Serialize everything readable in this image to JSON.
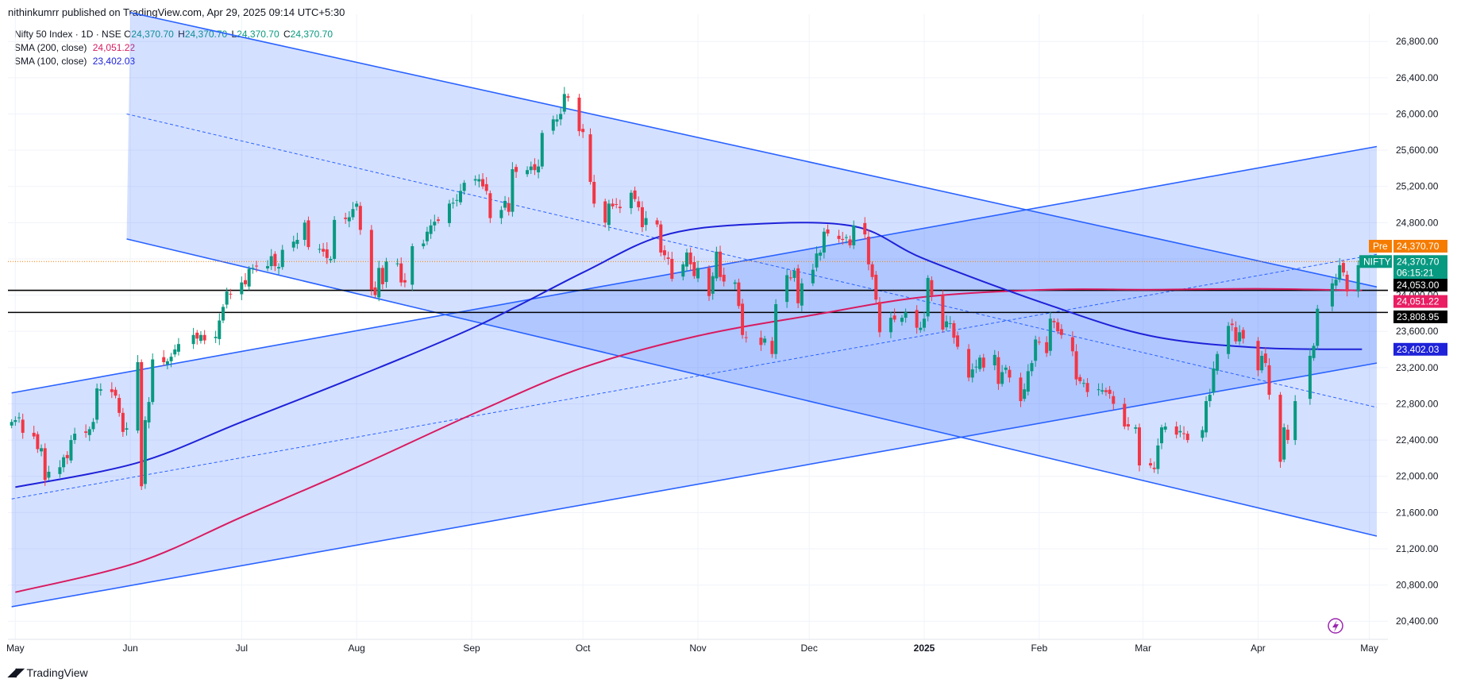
{
  "header": {
    "publisher": "nithinkumrr published on TradingView.com, Apr 29, 2025 09:14 UTC+5:30"
  },
  "legend": {
    "symbol": "Nifty 50 Index · 1D · NSE",
    "o_key": "O",
    "o": "24,370.70",
    "h_key": "H",
    "h": "24,370.70",
    "l_key": "L",
    "l": "24,370.70",
    "c_key": "C",
    "c": "24,370.70",
    "sma200_label": "SMA (200, close)",
    "sma200_value": "24,051.22",
    "sma100_label": "SMA (100, close)",
    "sma100_value": "23,402.03"
  },
  "footer": {
    "logo_text": "TradingView"
  },
  "colors": {
    "up": "#089981",
    "down": "#f23645",
    "channel_line": "#2962ff",
    "channel_fill": "#2962ff",
    "sma200": "#d81b60",
    "sma100": "#1e22d8",
    "pre_tag": "#f57c00",
    "nifty_tag": "#089981",
    "hline": "#000000"
  },
  "price_tags": {
    "pre_label": "Pre",
    "pre_value": "24,370.70",
    "nifty_label": "NIFTY",
    "nifty_value": "24,370.70",
    "countdown": "06:15:21",
    "hline1": "24,053.00",
    "hline2": "23,808.95",
    "sma200": "24,051.22",
    "sma100": "23,402.03"
  },
  "chart_data": {
    "type": "candlestick",
    "interval": "1D",
    "ylim": [
      20200,
      27100
    ],
    "y_ticks": [
      20400,
      20800,
      21200,
      21600,
      22000,
      22400,
      22800,
      23200,
      23600,
      24000,
      24400,
      24800,
      25200,
      25600,
      26000,
      26400,
      26800
    ],
    "y_tick_labels": [
      "20,400.00",
      "20,800.00",
      "21,200.00",
      "21,600.00",
      "22,000.00",
      "22,400.00",
      "22,800.00",
      "23,200.00",
      "23,600.00",
      "24,000.00",
      "24,400.00",
      "24,800.00",
      "25,200.00",
      "25,600.00",
      "26,000.00",
      "26,400.00",
      "26,800.00"
    ],
    "x_labels": [
      "May",
      "Jun",
      "Jul",
      "Aug",
      "Sep",
      "Oct",
      "Nov",
      "Dec",
      "2025",
      "Feb",
      "Mar",
      "Apr",
      "May"
    ],
    "x_label_dates": [
      "2024-05-01",
      "2024-06-01",
      "2024-07-01",
      "2024-08-01",
      "2024-09-01",
      "2024-10-01",
      "2024-11-01",
      "2024-12-01",
      "2025-01-01",
      "2025-02-01",
      "2025-03-01",
      "2025-04-01",
      "2025-05-01"
    ],
    "closes": [
      [
        "2024-04-30",
        22600
      ],
      [
        "2024-05-01",
        22620
      ],
      [
        "2024-05-02",
        22650
      ],
      [
        "2024-05-03",
        22480
      ],
      [
        "2024-05-06",
        22440
      ],
      [
        "2024-05-07",
        22300
      ],
      [
        "2024-05-08",
        22310
      ],
      [
        "2024-05-09",
        21960
      ],
      [
        "2024-05-10",
        22050
      ],
      [
        "2024-05-13",
        22100
      ],
      [
        "2024-05-14",
        22210
      ],
      [
        "2024-05-15",
        22200
      ],
      [
        "2024-05-16",
        22400
      ],
      [
        "2024-05-17",
        22470
      ],
      [
        "2024-05-20",
        22480
      ],
      [
        "2024-05-21",
        22520
      ],
      [
        "2024-05-22",
        22600
      ],
      [
        "2024-05-23",
        22970
      ],
      [
        "2024-05-24",
        22960
      ],
      [
        "2024-05-27",
        22930
      ],
      [
        "2024-05-28",
        22890
      ],
      [
        "2024-05-29",
        22700
      ],
      [
        "2024-05-30",
        22490
      ],
      [
        "2024-05-31",
        22530
      ],
      [
        "2024-06-03",
        23260
      ],
      [
        "2024-06-04",
        21890
      ],
      [
        "2024-06-05",
        22620
      ],
      [
        "2024-06-06",
        22820
      ],
      [
        "2024-06-07",
        23290
      ],
      [
        "2024-06-10",
        23260
      ],
      [
        "2024-06-11",
        23270
      ],
      [
        "2024-06-12",
        23320
      ],
      [
        "2024-06-13",
        23400
      ],
      [
        "2024-06-14",
        23460
      ],
      [
        "2024-06-18",
        23560
      ],
      [
        "2024-06-19",
        23520
      ],
      [
        "2024-06-20",
        23560
      ],
      [
        "2024-06-21",
        23500
      ],
      [
        "2024-06-24",
        23540
      ],
      [
        "2024-06-25",
        23720
      ],
      [
        "2024-06-26",
        23870
      ],
      [
        "2024-06-27",
        24040
      ],
      [
        "2024-06-28",
        24010
      ],
      [
        "2024-07-01",
        24140
      ],
      [
        "2024-07-02",
        24120
      ],
      [
        "2024-07-03",
        24290
      ],
      [
        "2024-07-04",
        24300
      ],
      [
        "2024-07-05",
        24320
      ],
      [
        "2024-07-08",
        24320
      ],
      [
        "2024-07-09",
        24430
      ],
      [
        "2024-07-10",
        24320
      ],
      [
        "2024-07-11",
        24310
      ],
      [
        "2024-07-12",
        24500
      ],
      [
        "2024-07-15",
        24590
      ],
      [
        "2024-07-16",
        24610
      ],
      [
        "2024-07-18",
        24800
      ],
      [
        "2024-07-19",
        24530
      ],
      [
        "2024-07-22",
        24510
      ],
      [
        "2024-07-23",
        24480
      ],
      [
        "2024-07-24",
        24410
      ],
      [
        "2024-07-25",
        24400
      ],
      [
        "2024-07-26",
        24830
      ],
      [
        "2024-07-29",
        24840
      ],
      [
        "2024-07-30",
        24860
      ],
      [
        "2024-07-31",
        24950
      ],
      [
        "2024-08-01",
        25010
      ],
      [
        "2024-08-02",
        24720
      ],
      [
        "2024-08-05",
        24060
      ],
      [
        "2024-08-06",
        24000
      ],
      [
        "2024-08-07",
        24300
      ],
      [
        "2024-08-08",
        24120
      ],
      [
        "2024-08-09",
        24370
      ],
      [
        "2024-08-12",
        24350
      ],
      [
        "2024-08-13",
        24140
      ],
      [
        "2024-08-14",
        24140
      ],
      [
        "2024-08-16",
        24540
      ],
      [
        "2024-08-19",
        24570
      ],
      [
        "2024-08-20",
        24700
      ],
      [
        "2024-08-21",
        24770
      ],
      [
        "2024-08-22",
        24810
      ],
      [
        "2024-08-23",
        24820
      ],
      [
        "2024-08-26",
        25010
      ],
      [
        "2024-08-27",
        25020
      ],
      [
        "2024-08-28",
        25050
      ],
      [
        "2024-08-29",
        25150
      ],
      [
        "2024-08-30",
        25240
      ],
      [
        "2024-09-02",
        25280
      ],
      [
        "2024-09-03",
        25280
      ],
      [
        "2024-09-04",
        25200
      ],
      [
        "2024-09-05",
        25150
      ],
      [
        "2024-09-06",
        24850
      ],
      [
        "2024-09-09",
        24940
      ],
      [
        "2024-09-10",
        25040
      ],
      [
        "2024-09-11",
        24920
      ],
      [
        "2024-09-12",
        25390
      ],
      [
        "2024-09-13",
        25360
      ],
      [
        "2024-09-16",
        25380
      ],
      [
        "2024-09-17",
        25420
      ],
      [
        "2024-09-18",
        25380
      ],
      [
        "2024-09-19",
        25420
      ],
      [
        "2024-09-20",
        25790
      ],
      [
        "2024-09-23",
        25940
      ],
      [
        "2024-09-24",
        25940
      ],
      [
        "2024-09-25",
        26000
      ],
      [
        "2024-09-26",
        26220
      ],
      [
        "2024-09-27",
        26180
      ],
      [
        "2024-09-30",
        25810
      ],
      [
        "2024-10-01",
        25800
      ],
      [
        "2024-10-03",
        25250
      ],
      [
        "2024-10-04",
        25010
      ],
      [
        "2024-10-07",
        24800
      ],
      [
        "2024-10-08",
        25010
      ],
      [
        "2024-10-09",
        24980
      ],
      [
        "2024-10-10",
        25000
      ],
      [
        "2024-10-11",
        24960
      ],
      [
        "2024-10-14",
        25130
      ],
      [
        "2024-10-15",
        25060
      ],
      [
        "2024-10-16",
        24970
      ],
      [
        "2024-10-17",
        24750
      ],
      [
        "2024-10-18",
        24850
      ],
      [
        "2024-10-21",
        24780
      ],
      [
        "2024-10-22",
        24470
      ],
      [
        "2024-10-23",
        24440
      ],
      [
        "2024-10-24",
        24400
      ],
      [
        "2024-10-25",
        24180
      ],
      [
        "2024-10-28",
        24340
      ],
      [
        "2024-10-29",
        24470
      ],
      [
        "2024-10-30",
        24340
      ],
      [
        "2024-10-31",
        24210
      ],
      [
        "2024-11-01",
        24300
      ],
      [
        "2024-11-04",
        23990
      ],
      [
        "2024-11-05",
        24210
      ],
      [
        "2024-11-06",
        24480
      ],
      [
        "2024-11-07",
        24200
      ],
      [
        "2024-11-08",
        24150
      ],
      [
        "2024-11-11",
        24140
      ],
      [
        "2024-11-12",
        23880
      ],
      [
        "2024-11-13",
        23560
      ],
      [
        "2024-11-14",
        23530
      ],
      [
        "2024-11-18",
        23450
      ],
      [
        "2024-11-19",
        23520
      ],
      [
        "2024-11-21",
        23350
      ],
      [
        "2024-11-22",
        23900
      ],
      [
        "2024-11-25",
        24220
      ],
      [
        "2024-11-26",
        24190
      ],
      [
        "2024-11-27",
        24270
      ],
      [
        "2024-11-28",
        23910
      ],
      [
        "2024-11-29",
        24130
      ],
      [
        "2024-12-02",
        24280
      ],
      [
        "2024-12-03",
        24460
      ],
      [
        "2024-12-04",
        24470
      ],
      [
        "2024-12-05",
        24700
      ],
      [
        "2024-12-06",
        24680
      ],
      [
        "2024-12-09",
        24620
      ],
      [
        "2024-12-10",
        24610
      ],
      [
        "2024-12-11",
        24640
      ],
      [
        "2024-12-12",
        24550
      ],
      [
        "2024-12-13",
        24770
      ],
      [
        "2024-12-16",
        24670
      ],
      [
        "2024-12-17",
        24340
      ],
      [
        "2024-12-18",
        24200
      ],
      [
        "2024-12-19",
        23950
      ],
      [
        "2024-12-20",
        23590
      ],
      [
        "2024-12-23",
        23750
      ],
      [
        "2024-12-24",
        23730
      ],
      [
        "2024-12-26",
        23750
      ],
      [
        "2024-12-27",
        23810
      ],
      [
        "2024-12-30",
        23640
      ],
      [
        "2024-12-31",
        23640
      ],
      [
        "2025-01-01",
        23740
      ],
      [
        "2025-01-02",
        24190
      ],
      [
        "2025-01-03",
        24000
      ],
      [
        "2025-01-06",
        23620
      ],
      [
        "2025-01-07",
        23710
      ],
      [
        "2025-01-08",
        23690
      ],
      [
        "2025-01-09",
        23530
      ],
      [
        "2025-01-10",
        23430
      ],
      [
        "2025-01-13",
        23090
      ],
      [
        "2025-01-14",
        23180
      ],
      [
        "2025-01-15",
        23210
      ],
      [
        "2025-01-16",
        23310
      ],
      [
        "2025-01-17",
        23200
      ],
      [
        "2025-01-20",
        23340
      ],
      [
        "2025-01-21",
        23020
      ],
      [
        "2025-01-22",
        23150
      ],
      [
        "2025-01-23",
        23200
      ],
      [
        "2025-01-24",
        23090
      ],
      [
        "2025-01-27",
        22830
      ],
      [
        "2025-01-28",
        22960
      ],
      [
        "2025-01-29",
        23160
      ],
      [
        "2025-01-30",
        23250
      ],
      [
        "2025-01-31",
        23510
      ],
      [
        "2025-02-01",
        23480
      ],
      [
        "2025-02-03",
        23360
      ],
      [
        "2025-02-04",
        23740
      ],
      [
        "2025-02-05",
        23700
      ],
      [
        "2025-02-06",
        23600
      ],
      [
        "2025-02-07",
        23560
      ],
      [
        "2025-02-10",
        23380
      ],
      [
        "2025-02-11",
        23070
      ],
      [
        "2025-02-12",
        23050
      ],
      [
        "2025-02-13",
        23030
      ],
      [
        "2025-02-14",
        22930
      ],
      [
        "2025-02-17",
        22960
      ],
      [
        "2025-02-18",
        22950
      ],
      [
        "2025-02-19",
        22930
      ],
      [
        "2025-02-20",
        22910
      ],
      [
        "2025-02-21",
        22800
      ],
      [
        "2025-02-24",
        22550
      ],
      [
        "2025-02-25",
        22550
      ],
      [
        "2025-02-27",
        22540
      ],
      [
        "2025-02-28",
        22120
      ],
      [
        "2025-03-03",
        22120
      ],
      [
        "2025-03-04",
        22080
      ],
      [
        "2025-03-05",
        22340
      ],
      [
        "2025-03-06",
        22540
      ],
      [
        "2025-03-07",
        22550
      ],
      [
        "2025-03-10",
        22460
      ],
      [
        "2025-03-11",
        22500
      ],
      [
        "2025-03-12",
        22470
      ],
      [
        "2025-03-13",
        22400
      ],
      [
        "2025-03-17",
        22510
      ],
      [
        "2025-03-18",
        22830
      ],
      [
        "2025-03-19",
        22900
      ],
      [
        "2025-03-20",
        23190
      ],
      [
        "2025-03-21",
        23350
      ],
      [
        "2025-03-24",
        23660
      ],
      [
        "2025-03-25",
        23670
      ],
      [
        "2025-03-26",
        23490
      ],
      [
        "2025-03-27",
        23590
      ],
      [
        "2025-03-28",
        23520
      ],
      [
        "2025-04-01",
        23170
      ],
      [
        "2025-04-02",
        23330
      ],
      [
        "2025-04-03",
        23250
      ],
      [
        "2025-04-04",
        22900
      ],
      [
        "2025-04-07",
        22160
      ],
      [
        "2025-04-08",
        22540
      ],
      [
        "2025-04-09",
        22400
      ],
      [
        "2025-04-11",
        22830
      ],
      [
        "2025-04-15",
        23330
      ],
      [
        "2025-04-16",
        23440
      ],
      [
        "2025-04-17",
        23850
      ],
      [
        "2025-04-21",
        24130
      ],
      [
        "2025-04-22",
        24170
      ],
      [
        "2025-04-23",
        24330
      ],
      [
        "2025-04-24",
        24250
      ],
      [
        "2025-04-25",
        24040
      ],
      [
        "2025-04-28",
        24330
      ],
      [
        "2025-04-29",
        24370
      ]
    ],
    "sma100": [
      [
        "2024-05-01",
        21880
      ],
      [
        "2024-06-03",
        22150
      ],
      [
        "2024-07-01",
        22600
      ],
      [
        "2024-08-01",
        23100
      ],
      [
        "2024-09-02",
        23650
      ],
      [
        "2024-10-01",
        24250
      ],
      [
        "2024-10-22",
        24650
      ],
      [
        "2024-11-14",
        24780
      ],
      [
        "2024-12-13",
        24760
      ],
      [
        "2025-01-01",
        24400
      ],
      [
        "2025-02-03",
        23900
      ],
      [
        "2025-03-03",
        23550
      ],
      [
        "2025-04-01",
        23420
      ],
      [
        "2025-04-29",
        23402
      ]
    ],
    "sma200": [
      [
        "2024-05-01",
        20720
      ],
      [
        "2024-06-03",
        21050
      ],
      [
        "2024-07-01",
        21550
      ],
      [
        "2024-08-01",
        22100
      ],
      [
        "2024-09-02",
        22700
      ],
      [
        "2024-10-01",
        23200
      ],
      [
        "2024-11-01",
        23550
      ],
      [
        "2024-12-02",
        23780
      ],
      [
        "2025-01-01",
        23980
      ],
      [
        "2025-02-03",
        24060
      ],
      [
        "2025-03-03",
        24060
      ],
      [
        "2025-04-01",
        24070
      ],
      [
        "2025-04-29",
        24051
      ]
    ],
    "horizontal_lines": [
      24053.0,
      23808.95
    ],
    "last_price": 24370.7,
    "drawings": {
      "descending_channel": {
        "upper": [
          [
            "2024-06-01",
            27120
          ],
          [
            "2025-05-03",
            24090
          ]
        ],
        "middle": [
          [
            "2024-05-31",
            26000
          ],
          [
            "2025-05-03",
            22760
          ]
        ],
        "lower": [
          [
            "2024-05-31",
            24620
          ],
          [
            "2025-05-03",
            21340
          ]
        ]
      },
      "ascending_channel": {
        "upper": [
          [
            "2024-04-30",
            22920
          ],
          [
            "2025-05-03",
            25640
          ]
        ],
        "middle": [
          [
            "2024-04-30",
            21750
          ],
          [
            "2025-05-03",
            24450
          ]
        ],
        "lower": [
          [
            "2024-04-30",
            20560
          ],
          [
            "2025-05-03",
            23250
          ]
        ]
      }
    }
  }
}
